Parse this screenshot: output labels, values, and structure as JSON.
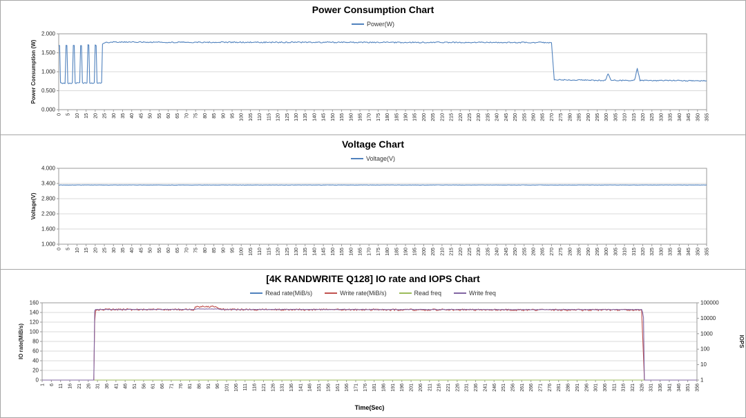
{
  "chart_data": [
    {
      "type": "line",
      "title": "Power Consumption Chart",
      "legend": [
        {
          "label": "Power(W)",
          "color": "#4F81BD"
        }
      ],
      "x_axis": {
        "min": 0,
        "max": 355,
        "step": 5,
        "ticks": [
          "0",
          "5",
          "10",
          "15",
          "20",
          "25",
          "30",
          "35",
          "40",
          "45",
          "50",
          "55",
          "60",
          "65",
          "70",
          "75",
          "80",
          "85",
          "90",
          "95",
          "100",
          "105",
          "110",
          "115",
          "120",
          "125",
          "130",
          "135",
          "140",
          "145",
          "150",
          "155",
          "160",
          "165",
          "170",
          "175",
          "180",
          "185",
          "190",
          "195",
          "200",
          "205",
          "210",
          "215",
          "220",
          "225",
          "230",
          "235",
          "240",
          "245",
          "250",
          "255",
          "260",
          "265",
          "270",
          "275",
          "280",
          "285",
          "290",
          "295",
          "300",
          "305",
          "310",
          "315",
          "320",
          "325",
          "330",
          "335",
          "340",
          "345",
          "350",
          "355"
        ]
      },
      "y_axis": {
        "title": "Power Consumption (W)",
        "min": 0,
        "max": 2,
        "tick_values": [
          0,
          0.5,
          1,
          1.5,
          2
        ],
        "tick_labels": [
          "0.000",
          "0.500",
          "1.000",
          "1.500",
          "2.000"
        ]
      },
      "series": [
        {
          "name": "Power(W)",
          "color": "#4F81BD",
          "axis": "left",
          "noise": 0.015,
          "points": [
            [
              0,
              1.7
            ],
            [
              0.6,
              1.7
            ],
            [
              1,
              0.7
            ],
            [
              3.6,
              0.7
            ],
            [
              4,
              1.7
            ],
            [
              4.6,
              1.7
            ],
            [
              5,
              0.7
            ],
            [
              7.6,
              0.7
            ],
            [
              8,
              1.7
            ],
            [
              8.6,
              1.7
            ],
            [
              9,
              0.7
            ],
            [
              11.6,
              0.7
            ],
            [
              12,
              1.7
            ],
            [
              12.6,
              1.7
            ],
            [
              13,
              0.7
            ],
            [
              15.6,
              0.7
            ],
            [
              16,
              1.7
            ],
            [
              16.6,
              1.7
            ],
            [
              17,
              0.7
            ],
            [
              19.6,
              0.7
            ],
            [
              20,
              1.7
            ],
            [
              20.6,
              1.7
            ],
            [
              21,
              0.7
            ],
            [
              23.6,
              0.7
            ],
            [
              24,
              1.74
            ],
            [
              26,
              1.78
            ],
            [
              270,
              1.77
            ],
            [
              271.5,
              0.79
            ],
            [
              299.5,
              0.77
            ],
            [
              301,
              0.95
            ],
            [
              302.5,
              0.77
            ],
            [
              315.5,
              0.77
            ],
            [
              317,
              1.1
            ],
            [
              318.5,
              0.77
            ],
            [
              355,
              0.76
            ]
          ]
        }
      ]
    },
    {
      "type": "line",
      "title": "Voltage Chart",
      "legend": [
        {
          "label": "Voltage(V)",
          "color": "#4F81BD"
        }
      ],
      "x_axis": {
        "min": 0,
        "max": 355,
        "step": 5,
        "ticks": [
          "0",
          "5",
          "10",
          "15",
          "20",
          "25",
          "30",
          "35",
          "40",
          "45",
          "50",
          "55",
          "60",
          "65",
          "70",
          "75",
          "80",
          "85",
          "90",
          "95",
          "100",
          "105",
          "110",
          "115",
          "120",
          "125",
          "130",
          "135",
          "140",
          "145",
          "150",
          "155",
          "160",
          "165",
          "170",
          "175",
          "180",
          "185",
          "190",
          "195",
          "200",
          "205",
          "210",
          "215",
          "220",
          "225",
          "230",
          "235",
          "240",
          "245",
          "250",
          "255",
          "260",
          "265",
          "270",
          "275",
          "280",
          "285",
          "290",
          "295",
          "300",
          "305",
          "310",
          "315",
          "320",
          "325",
          "330",
          "335",
          "340",
          "345",
          "350",
          "355"
        ]
      },
      "y_axis": {
        "title": "Voltage(V)",
        "min": 1,
        "max": 4,
        "tick_values": [
          1,
          1.6,
          2.2,
          2.8,
          3.4,
          4.0
        ],
        "tick_labels": [
          "1.000",
          "1.600",
          "2.200",
          "2.800",
          "3.400",
          "4.000"
        ]
      },
      "series": [
        {
          "name": "Voltage(V)",
          "color": "#4F81BD",
          "axis": "left",
          "noise": 0.005,
          "points": [
            [
              0,
              3.34
            ],
            [
              355,
              3.34
            ]
          ]
        }
      ]
    },
    {
      "type": "line",
      "title": "[4K RANDWRITE Q128] IO rate and IOPS Chart",
      "x_title": "Time(Sec)",
      "legend": [
        {
          "label": "Read rate(MiB/s)",
          "color": "#4F81BD"
        },
        {
          "label": "Write rate(MiB/s)",
          "color": "#C0504D"
        },
        {
          "label": "Read freq",
          "color": "#9BBB59"
        },
        {
          "label": "Write freq",
          "color": "#8064A2"
        }
      ],
      "x_axis": {
        "min": 1,
        "max": 356,
        "step": 5,
        "ticks": [
          "1",
          "6",
          "11",
          "16",
          "21",
          "26",
          "31",
          "36",
          "41",
          "46",
          "51",
          "56",
          "61",
          "66",
          "71",
          "76",
          "81",
          "86",
          "91",
          "96",
          "101",
          "106",
          "111",
          "116",
          "121",
          "126",
          "131",
          "136",
          "141",
          "146",
          "151",
          "156",
          "161",
          "166",
          "171",
          "176",
          "181",
          "186",
          "191",
          "196",
          "201",
          "206",
          "211",
          "216",
          "221",
          "226",
          "231",
          "236",
          "241",
          "246",
          "251",
          "256",
          "261",
          "266",
          "271",
          "276",
          "281",
          "286",
          "291",
          "296",
          "301",
          "306",
          "311",
          "316",
          "321",
          "326",
          "331",
          "336",
          "341",
          "346",
          "351",
          "356"
        ]
      },
      "y_axis": {
        "title": "IO rate(MiB/s)",
        "min": 0,
        "max": 160,
        "tick_values": [
          0,
          20,
          40,
          60,
          80,
          100,
          120,
          140,
          160
        ],
        "tick_labels": [
          "0",
          "20",
          "40",
          "60",
          "80",
          "100",
          "120",
          "140",
          "160"
        ]
      },
      "y2_axis": {
        "title": "IOPS",
        "min": 1,
        "max": 100000,
        "scale": "log",
        "tick_values": [
          1,
          10,
          100,
          1000,
          10000,
          100000
        ],
        "tick_labels": [
          "1",
          "10",
          "100",
          "1000",
          "10000",
          "100000"
        ]
      },
      "series": [
        {
          "name": "Read rate(MiB/s)",
          "color": "#4F81BD",
          "axis": "left",
          "noise": 0,
          "points": [
            [
              1,
              0
            ],
            [
              356,
              0
            ]
          ]
        },
        {
          "name": "Read freq",
          "color": "#9BBB59",
          "axis": "right",
          "noise": 0,
          "points": [
            [
              1,
              0
            ],
            [
              356,
              0
            ]
          ]
        },
        {
          "name": "Write rate(MiB/s)",
          "color": "#C0504D",
          "axis": "left",
          "noise": 1.8,
          "points": [
            [
              1,
              0
            ],
            [
              29,
              0
            ],
            [
              29.6,
              146
            ],
            [
              83,
              146
            ],
            [
              84.5,
              152
            ],
            [
              96,
              152
            ],
            [
              97.5,
              146
            ],
            [
              326,
              145
            ],
            [
              327.5,
              0
            ],
            [
              356,
              0
            ]
          ]
        },
        {
          "name": "Write freq",
          "color": "#8064A2",
          "axis": "right",
          "noise": 1200,
          "points": [
            [
              1,
              0
            ],
            [
              29,
              0
            ],
            [
              29.6,
              37000
            ],
            [
              83,
              37000
            ],
            [
              84.5,
              40000
            ],
            [
              96,
              40000
            ],
            [
              97.5,
              37000
            ],
            [
              326,
              36500
            ],
            [
              327.5,
              0
            ],
            [
              356,
              0
            ]
          ]
        }
      ]
    }
  ]
}
